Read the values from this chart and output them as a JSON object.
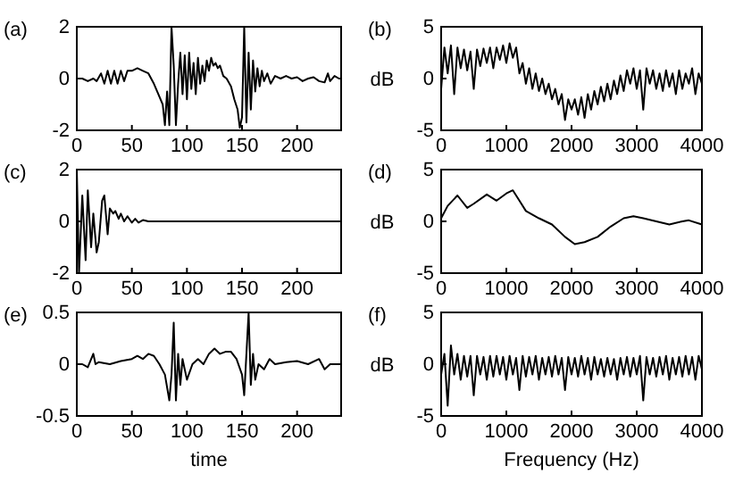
{
  "chart_data": [
    {
      "type": "line",
      "title": "(a)",
      "xlim": [
        0,
        240
      ],
      "ylim": [
        -2,
        2
      ],
      "xticks": [
        0,
        50,
        100,
        150,
        200
      ],
      "yticks": [
        -2,
        0,
        2
      ],
      "series": [
        {
          "color": "#000000",
          "x": [
            0,
            5,
            10,
            15,
            18,
            22,
            25,
            28,
            31,
            34,
            37,
            40,
            43,
            46,
            50,
            55,
            60,
            65,
            70,
            74,
            78,
            80,
            82,
            84,
            86,
            88,
            90,
            92,
            94,
            96,
            98,
            100,
            102,
            104,
            106,
            108,
            110,
            112,
            114,
            116,
            118,
            120,
            122,
            124,
            126,
            128,
            130,
            133,
            136,
            140,
            143,
            146,
            148,
            150,
            152,
            154,
            156,
            158,
            160,
            162,
            164,
            166,
            168,
            170,
            173,
            176,
            180,
            185,
            190,
            195,
            200,
            205,
            210,
            215,
            220,
            225,
            228,
            230,
            234,
            238,
            240
          ],
          "values": [
            0,
            0,
            -0.1,
            0,
            -0.1,
            0.2,
            -0.2,
            0.3,
            -0.2,
            0.3,
            -0.2,
            0.3,
            -0.1,
            0.3,
            0.3,
            0.4,
            0.3,
            0.2,
            -0.2,
            -0.6,
            -1,
            -1.8,
            -0.5,
            -1.8,
            2,
            0.5,
            -1.8,
            -0.2,
            1,
            -0.6,
            0.9,
            -0.8,
            1,
            -0.4,
            0.6,
            -0.6,
            0.8,
            -0.2,
            0.5,
            -0.1,
            0.7,
            0.3,
            0.8,
            0.5,
            0.6,
            0.4,
            0.5,
            0.1,
            0,
            -0.3,
            -0.8,
            -1.2,
            -1.9,
            -1.5,
            2,
            -1.7,
            1,
            -1.2,
            0.7,
            -0.5,
            0.4,
            -0.3,
            0.3,
            -0.1,
            0.2,
            -0.2,
            0.1,
            0,
            0.1,
            0,
            0.05,
            -0.1,
            0,
            0.05,
            -0.1,
            -0.15,
            0.2,
            -0.1,
            0.1,
            0,
            0
          ]
        }
      ]
    },
    {
      "type": "line",
      "title": "(b)",
      "ylabel": "dB",
      "xlim": [
        0,
        4000
      ],
      "ylim": [
        -5,
        5
      ],
      "xticks": [
        0,
        1000,
        2000,
        3000,
        4000
      ],
      "yticks": [
        -5,
        0,
        5
      ],
      "series": [
        {
          "color": "#000000",
          "x": [
            0,
            50,
            100,
            150,
            200,
            250,
            300,
            350,
            400,
            450,
            500,
            550,
            600,
            650,
            700,
            750,
            800,
            850,
            900,
            950,
            1000,
            1050,
            1100,
            1150,
            1200,
            1250,
            1300,
            1350,
            1400,
            1450,
            1500,
            1550,
            1600,
            1650,
            1700,
            1750,
            1800,
            1850,
            1900,
            1950,
            2000,
            2050,
            2100,
            2150,
            2200,
            2250,
            2300,
            2350,
            2400,
            2450,
            2500,
            2550,
            2600,
            2650,
            2700,
            2750,
            2800,
            2850,
            2900,
            2950,
            3000,
            3050,
            3100,
            3150,
            3200,
            3250,
            3300,
            3350,
            3400,
            3450,
            3500,
            3550,
            3600,
            3650,
            3700,
            3750,
            3800,
            3850,
            3900,
            3950,
            4000
          ],
          "values": [
            -1,
            3,
            0.5,
            3.2,
            -1.5,
            3,
            1,
            2.8,
            0.8,
            2.6,
            -1,
            2.8,
            1.2,
            2.9,
            1.5,
            3,
            1,
            3,
            1.8,
            3.2,
            1.5,
            3.4,
            2,
            3,
            0.5,
            1.5,
            -0.5,
            1,
            -1,
            0.5,
            -1.2,
            0,
            -1.5,
            -0.5,
            -2,
            -1,
            -2.5,
            -1.5,
            -4,
            -2,
            -3,
            -2,
            -3.5,
            -1.8,
            -3.8,
            -1.5,
            -3,
            -1.2,
            -2.5,
            -0.8,
            -2.2,
            -0.5,
            -2,
            -0.2,
            -1.5,
            0.3,
            -1.2,
            0.8,
            -0.5,
            1,
            -1,
            0.8,
            -3,
            1,
            -0.5,
            0.8,
            -1,
            0.5,
            -1.2,
            0.8,
            -0.8,
            0.5,
            -1.5,
            0.8,
            -1,
            0.5,
            -0.5,
            1,
            -1.5,
            0.5,
            -0.5
          ]
        }
      ]
    },
    {
      "type": "line",
      "title": "(c)",
      "xlim": [
        0,
        240
      ],
      "ylim": [
        -2,
        2
      ],
      "xticks": [
        0,
        50,
        100,
        150,
        200
      ],
      "yticks": [
        -2,
        0,
        2
      ],
      "series": [
        {
          "color": "#000000",
          "x": [
            0,
            2,
            5,
            8,
            10,
            13,
            15,
            18,
            20,
            23,
            25,
            28,
            30,
            33,
            35,
            38,
            40,
            43,
            46,
            50,
            53,
            56,
            60,
            65,
            240
          ],
          "values": [
            2,
            -2,
            1,
            -1.5,
            1.2,
            -1,
            0.3,
            -1.2,
            -0.8,
            0.8,
            1,
            -0.5,
            0.5,
            0.3,
            0.4,
            0.1,
            0.3,
            0,
            0.2,
            -0.05,
            0.1,
            -0.05,
            0.05,
            0,
            0
          ]
        }
      ]
    },
    {
      "type": "line",
      "title": "(d)",
      "ylabel": "dB",
      "xlim": [
        0,
        4000
      ],
      "ylim": [
        -5,
        5
      ],
      "xticks": [
        0,
        1000,
        2000,
        3000,
        4000
      ],
      "yticks": [
        -5,
        0,
        5
      ],
      "series": [
        {
          "color": "#000000",
          "x": [
            0,
            100,
            250,
            400,
            500,
            700,
            850,
            1000,
            1100,
            1200,
            1300,
            1500,
            1700,
            1900,
            2050,
            2200,
            2400,
            2600,
            2800,
            2950,
            3100,
            3300,
            3500,
            3700,
            3800,
            4000
          ],
          "values": [
            0.3,
            1.5,
            2.5,
            1.3,
            1.7,
            2.6,
            2,
            2.7,
            3,
            2,
            1,
            0.3,
            -0.3,
            -1.5,
            -2.2,
            -2,
            -1.5,
            -0.5,
            0.3,
            0.5,
            0.3,
            0,
            -0.3,
            0,
            0.1,
            -0.3
          ]
        }
      ]
    },
    {
      "type": "line",
      "title": "(e)",
      "xlabel": "time",
      "xlim": [
        0,
        240
      ],
      "ylim": [
        -0.5,
        0.5
      ],
      "xticks": [
        0,
        50,
        100,
        150,
        200
      ],
      "yticks": [
        -0.5,
        0,
        0.5
      ],
      "series": [
        {
          "color": "#000000",
          "x": [
            0,
            5,
            10,
            15,
            17,
            20,
            30,
            40,
            50,
            55,
            60,
            65,
            70,
            75,
            80,
            84,
            86,
            88,
            90,
            92,
            94,
            96,
            100,
            105,
            110,
            115,
            120,
            125,
            130,
            135,
            140,
            145,
            150,
            152,
            154,
            156,
            158,
            160,
            162,
            165,
            170,
            175,
            180,
            190,
            200,
            210,
            220,
            225,
            230,
            240
          ],
          "values": [
            0,
            0,
            -0.03,
            0.1,
            0,
            0.02,
            0,
            0.03,
            0.05,
            0.08,
            0.05,
            0.1,
            0.08,
            0,
            -0.1,
            -0.35,
            -0.1,
            0.4,
            -0.35,
            0.1,
            -0.2,
            0.05,
            -0.15,
            0,
            0.05,
            0,
            0.1,
            0.15,
            0.1,
            0.12,
            0.12,
            0.05,
            -0.1,
            -0.3,
            0.1,
            0.5,
            -0.2,
            0.1,
            -0.15,
            0,
            -0.05,
            0.05,
            0,
            0.02,
            0.03,
            0,
            0.05,
            -0.05,
            0,
            0
          ]
        }
      ]
    },
    {
      "type": "line",
      "title": "(f)",
      "ylabel": "dB",
      "xlabel": "Frequency (Hz)",
      "xlim": [
        0,
        4000
      ],
      "ylim": [
        -5,
        5
      ],
      "xticks": [
        0,
        1000,
        2000,
        3000,
        4000
      ],
      "yticks": [
        -5,
        0,
        5
      ],
      "series": [
        {
          "color": "#000000",
          "x": [
            0,
            50,
            100,
            150,
            200,
            250,
            300,
            350,
            400,
            450,
            500,
            550,
            600,
            650,
            700,
            750,
            800,
            850,
            900,
            950,
            1000,
            1050,
            1100,
            1150,
            1200,
            1250,
            1300,
            1350,
            1400,
            1450,
            1500,
            1550,
            1600,
            1650,
            1700,
            1750,
            1800,
            1850,
            1900,
            1950,
            2000,
            2050,
            2100,
            2150,
            2200,
            2250,
            2300,
            2350,
            2400,
            2450,
            2500,
            2550,
            2600,
            2650,
            2700,
            2750,
            2800,
            2850,
            2900,
            2950,
            3000,
            3050,
            3100,
            3150,
            3200,
            3250,
            3300,
            3350,
            3400,
            3450,
            3500,
            3550,
            3600,
            3650,
            3700,
            3750,
            3800,
            3850,
            3900,
            3950,
            4000
          ],
          "values": [
            -1,
            1,
            -4,
            1.8,
            -1,
            1,
            -1.5,
            0.8,
            -1.2,
            0.8,
            -3,
            0.8,
            -1,
            0.7,
            -1.5,
            0.8,
            -1.2,
            0.8,
            -1,
            0.7,
            -1.5,
            0.8,
            -1,
            0.6,
            -2.5,
            0.8,
            -1.2,
            0.7,
            -1,
            0.8,
            -1.5,
            0.6,
            -1,
            0.7,
            -1.2,
            0.8,
            -1,
            0.6,
            -2.5,
            0.7,
            -1,
            0.6,
            -1.2,
            0.8,
            -1,
            0.6,
            -1.5,
            0.7,
            -1,
            0.5,
            -1.2,
            0.6,
            -1,
            0.5,
            -1.5,
            0.6,
            -1,
            0.7,
            -1.2,
            0.6,
            -1,
            0.8,
            -3.5,
            0.7,
            -1,
            0.6,
            -1.2,
            0.7,
            -1,
            0.8,
            -1.5,
            0.6,
            -1,
            0.7,
            -1.2,
            0.8,
            -1,
            0.7,
            -1.5,
            0.8,
            -0.5
          ]
        }
      ]
    }
  ]
}
